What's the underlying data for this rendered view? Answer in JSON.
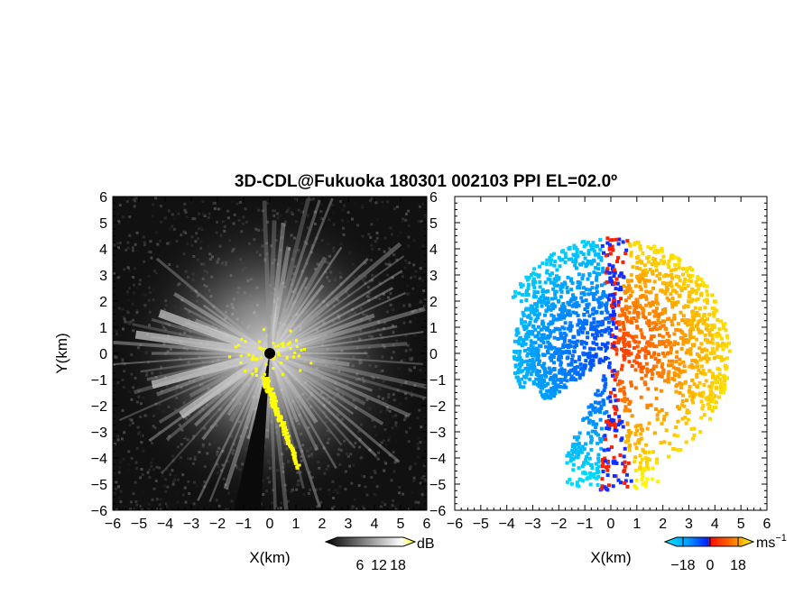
{
  "figure": {
    "title": "3D-CDL@Fukuoka 180301 002103 PPI EL=02.0º"
  },
  "chart_data": [
    {
      "type": "heatmap",
      "panel": "left",
      "quantity_unit": "dB",
      "xlabel": "X(km)",
      "ylabel": "Y(km)",
      "xlim": [
        -6,
        6
      ],
      "ylim": [
        -6,
        6
      ],
      "xticks": [
        "−6",
        "−5",
        "−4",
        "−3",
        "−2",
        "−1",
        "0",
        "1",
        "2",
        "3",
        "4",
        "5",
        "6"
      ],
      "yticks": [
        "6",
        "5",
        "4",
        "3",
        "2",
        "1",
        "0",
        "−1",
        "−2",
        "−3",
        "−4",
        "−5",
        "−6"
      ],
      "colorbar": {
        "ticks": [
          "6",
          "12",
          "18"
        ],
        "unit": "dB",
        "colors": [
          "#000000",
          "#ffffff",
          "#ffff00"
        ]
      },
      "notes": "Grayscale PPI backscatter intensity, bright radial streaks near center, yellow high-intensity echoes near origin and along a line toward (1,-4.5)"
    },
    {
      "type": "heatmap",
      "panel": "right",
      "quantity_unit": "ms⁻¹",
      "xlabel": "X(km)",
      "xlim": [
        -6,
        6
      ],
      "ylim": [
        -6,
        6
      ],
      "xticks": [
        "−6",
        "−5",
        "−4",
        "−3",
        "−2",
        "−1",
        "0",
        "1",
        "2",
        "3",
        "4",
        "5",
        "6"
      ],
      "yticks": [
        "6",
        "5",
        "4",
        "3",
        "2",
        "1",
        "0",
        "−1",
        "−2",
        "−3",
        "−4",
        "−5",
        "−6"
      ],
      "colorbar": {
        "ticks": [
          "−18",
          "0",
          "18"
        ],
        "unit": "ms",
        "unit_exp": "−1",
        "colors": [
          "#00e0ff",
          "#0040ff",
          "#ff2000",
          "#ffff00"
        ]
      },
      "notes": "Doppler radial velocity, negative (blue) to the west, positive (red/orange/yellow) to the east"
    }
  ]
}
